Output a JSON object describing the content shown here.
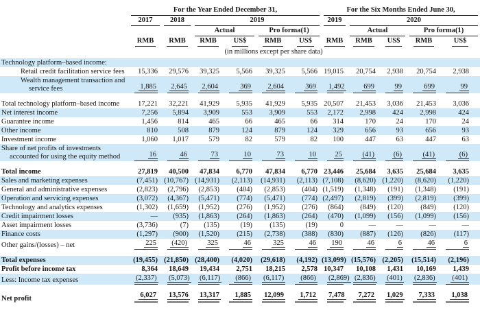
{
  "colors": {
    "highlight_blue": "#cfe9f8",
    "rule_dark": "#2a2a2a",
    "final_rule_gray": "#8f8f8f"
  },
  "header": {
    "fy_title": "For the Year Ended December 31,",
    "sm_title": "For the Six Months Ended June 30,",
    "fy_2017": "2017",
    "fy_2018": "2018",
    "fy_2019": "2019",
    "sm_2019": "2019",
    "sm_2020": "2020",
    "actual": "Actual",
    "pro_forma": "Pro forma(1)",
    "rmb": "RMB",
    "usd": "US$",
    "unit_note": "(in millions except per share data)"
  },
  "table": {
    "columns": [
      "FY2017 RMB",
      "FY2018 RMB",
      "FY2019 Actual RMB",
      "FY2019 Actual US$",
      "FY2019 Pro forma RMB",
      "FY2019 Pro forma US$",
      "6M2019 RMB",
      "6M2020 Actual RMB",
      "6M2020 Actual US$",
      "6M2020 Pro forma RMB",
      "6M2020 Pro forma US$"
    ],
    "rows": [
      {
        "label": [
          "Technology platform–based income:"
        ],
        "indent": 0,
        "hl": true,
        "values": [
          "",
          "",
          "",
          "",
          "",
          "",
          "",
          "",
          "",
          "",
          ""
        ]
      },
      {
        "label": [
          "Retail credit facilitation service fees"
        ],
        "indent": 1,
        "hl": false,
        "values": [
          "15,336",
          "29,576",
          "39,325",
          "5,566",
          "39,325",
          "5,566",
          "19,015",
          "20,754",
          "2,938",
          "20,754",
          "2,938"
        ]
      },
      {
        "label": [
          "Wealth management transaction and",
          "service fees"
        ],
        "indent": 1,
        "hl": true,
        "rule": "sub",
        "values": [
          "1,885",
          "2,645",
          "2,604",
          "369",
          "2,604",
          "369",
          "1,492",
          "699",
          "99",
          "699",
          "99"
        ]
      },
      {
        "gap": true
      },
      {
        "label": [
          "Total technology platform–based income"
        ],
        "indent": 0,
        "hl": false,
        "values": [
          "17,221",
          "32,221",
          "41,929",
          "5,935",
          "41,929",
          "5,935",
          "20,507",
          "21,453",
          "3,036",
          "21,453",
          "3,036"
        ]
      },
      {
        "label": [
          "Net interest income"
        ],
        "indent": 0,
        "hl": true,
        "values": [
          "7,256",
          "5,894",
          "3,909",
          "553",
          "3,909",
          "553",
          "2,172",
          "2,998",
          "424",
          "2,998",
          "424"
        ]
      },
      {
        "label": [
          "Guarantee income"
        ],
        "indent": 0,
        "hl": false,
        "values": [
          "1,456",
          "814",
          "465",
          "66",
          "465",
          "66",
          "314",
          "170",
          "24",
          "170",
          "24"
        ]
      },
      {
        "label": [
          "Other income"
        ],
        "indent": 0,
        "hl": true,
        "values": [
          "810",
          "508",
          "879",
          "124",
          "879",
          "124",
          "329",
          "656",
          "93",
          "656",
          "93"
        ]
      },
      {
        "label": [
          "Investment income"
        ],
        "indent": 0,
        "hl": false,
        "values": [
          "1,060",
          "1,017",
          "579",
          "82",
          "579",
          "82",
          "100",
          "447",
          "63",
          "447",
          "63"
        ]
      },
      {
        "label": [
          "Share of net profits of investments",
          "accounted for using the equity method"
        ],
        "indent": 0,
        "hl": true,
        "rule": "sub",
        "values": [
          "16",
          "46",
          "73",
          "10",
          "73",
          "10",
          "25",
          "(41)",
          "(6)",
          "(41)",
          "(6)"
        ]
      },
      {
        "gap": true
      },
      {
        "label": [
          "Total income"
        ],
        "indent": 0,
        "bold": true,
        "hl": false,
        "values": [
          "27,819",
          "40,500",
          "47,834",
          "6,770",
          "47,834",
          "6,770",
          "23,446",
          "25,684",
          "3,635",
          "25,684",
          "3,635"
        ]
      },
      {
        "label": [
          "Sales and marketing expenses"
        ],
        "indent": 0,
        "hl": true,
        "values": [
          "(7,451)",
          "(10,767)",
          "(14,931)",
          "(2,113)",
          "(14,931)",
          "(2,113)",
          "(7,108)",
          "(8,620)",
          "(1,220)",
          "(8,620)",
          "(1,220)"
        ]
      },
      {
        "label": [
          "General and administrative expenses"
        ],
        "indent": 0,
        "hl": false,
        "values": [
          "(2,823)",
          "(2,796)",
          "(2,853)",
          "(404)",
          "(2,853)",
          "(404)",
          "(1,519)",
          "(1,348)",
          "(191)",
          "(1,348)",
          "(191)"
        ]
      },
      {
        "label": [
          "Operation and servicing expenses"
        ],
        "indent": 0,
        "hl": true,
        "values": [
          "(3,072)",
          "(4,367)",
          "(5,471)",
          "(774)",
          "(5,471)",
          "(774)",
          "(2,497)",
          "(2,819)",
          "(399)",
          "(2,819)",
          "(399)"
        ]
      },
      {
        "label": [
          "Technology and analytics expenses"
        ],
        "indent": 0,
        "hl": false,
        "values": [
          "(1,302)",
          "(1,659)",
          "(1,952)",
          "(276)",
          "(1,952)",
          "(276)",
          "(864)",
          "(849)",
          "(120)",
          "(849)",
          "(120)"
        ]
      },
      {
        "label": [
          "Credit impairment losses"
        ],
        "indent": 0,
        "hl": true,
        "values": [
          "—",
          "(935)",
          "(1,863)",
          "(264)",
          "(1,863)",
          "(264)",
          "(470)",
          "(1,099)",
          "(156)",
          "(1,099)",
          "(156)"
        ]
      },
      {
        "label": [
          "Asset impairment losses"
        ],
        "indent": 0,
        "hl": false,
        "values": [
          "(3,736)",
          "(7)",
          "(135)",
          "(19)",
          "(135)",
          "(19)",
          "0",
          "—",
          "—",
          "—",
          "—"
        ]
      },
      {
        "label": [
          "Finance costs"
        ],
        "indent": 0,
        "hl": true,
        "values": [
          "(1,297)",
          "(900)",
          "(1,520)",
          "(215)",
          "(2,738)",
          "(388)",
          "(830)",
          "(887)",
          "(126)",
          "(826)",
          "(117)"
        ]
      },
      {
        "label": [
          "Other gains/(losses) – net"
        ],
        "indent": 0,
        "hl": false,
        "rule": "sub",
        "values": [
          "225",
          "(420)",
          "325",
          "46",
          "325",
          "46",
          "190",
          "46",
          "6",
          "46",
          "6"
        ]
      },
      {
        "gap": true
      },
      {
        "label": [
          "Total expenses"
        ],
        "indent": 0,
        "bold": true,
        "hl": true,
        "values": [
          "(19,455)",
          "(21,850)",
          "(28,400)",
          "(4,020)",
          "(29,618)",
          "(4,192)",
          "(13,099)",
          "(15,576)",
          "(2,205)",
          "(15,514)",
          "(2,196)"
        ]
      },
      {
        "label": [
          "Profit before income tax"
        ],
        "indent": 0,
        "bold": true,
        "hl": false,
        "values": [
          "8,364",
          "18,649",
          "19,434",
          "2,751",
          "18,215",
          "2,578",
          "10,347",
          "10,108",
          "1,431",
          "10,169",
          "1,439"
        ]
      },
      {
        "label": [
          "Less: Income tax expenses"
        ],
        "indent": 0,
        "hl": true,
        "rule": "sub",
        "values": [
          "(2,337)",
          "(5,073)",
          "(6,117)",
          "(866)",
          "(6,117)",
          "(866)",
          "(2,869)",
          "(2,836)",
          "(401)",
          "(2,836)",
          "(401)"
        ]
      },
      {
        "gap": true
      },
      {
        "label": [
          "Net profit"
        ],
        "indent": 0,
        "bold": true,
        "hl": false,
        "rule": "final",
        "values": [
          "6,027",
          "13,576",
          "13,317",
          "1,885",
          "12,099",
          "1,712",
          "7,478",
          "7,272",
          "1,029",
          "7,333",
          "1,038"
        ]
      }
    ]
  }
}
